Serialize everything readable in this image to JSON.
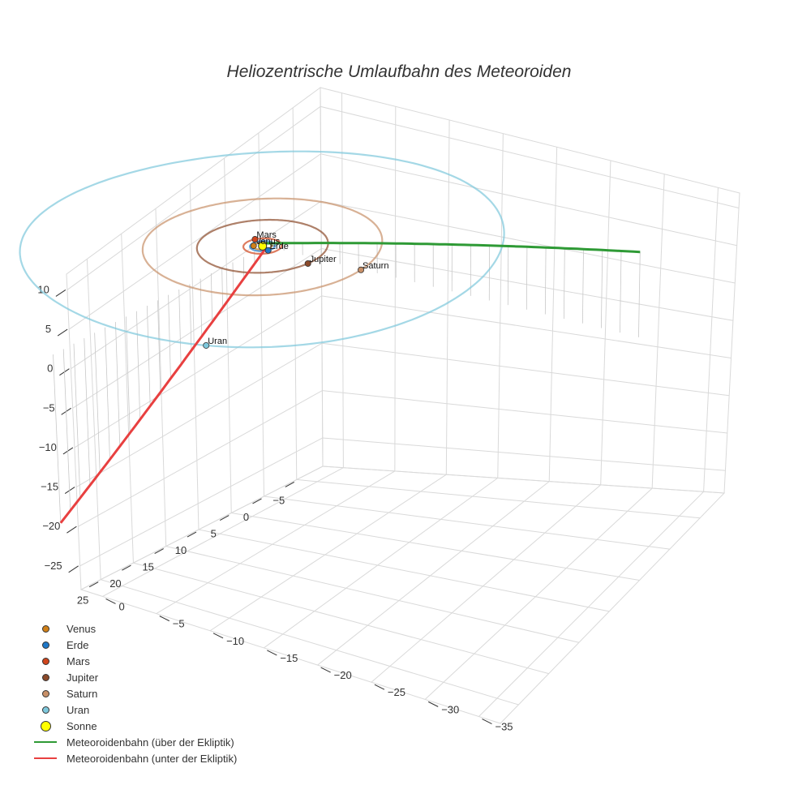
{
  "chart_data": {
    "type": "scatter3d",
    "title": "Heliozentrische Umlaufbahn des Meteoroiden",
    "axes": {
      "x": {
        "ticks": [
          -35,
          -30,
          -25,
          -20,
          -15,
          -10,
          -5,
          0
        ],
        "tick_labels": [
          "−35",
          "−30",
          "−25",
          "−20",
          "−15",
          "−10",
          "−5",
          "0"
        ]
      },
      "y": {
        "ticks": [
          -5,
          0,
          5,
          10,
          15,
          20,
          25
        ],
        "tick_labels": [
          "−5",
          "0",
          "5",
          "10",
          "15",
          "20",
          "25"
        ]
      },
      "z": {
        "ticks": [
          10,
          5,
          0,
          -5,
          -10,
          -15,
          -20,
          -25
        ],
        "tick_labels": [
          "10",
          "5",
          "0",
          "−5",
          "−10",
          "−15",
          "−20",
          "−25"
        ]
      },
      "grid": true
    },
    "bodies": [
      {
        "name": "Venus",
        "color": "#d08018",
        "orbit_radius": 0.72
      },
      {
        "name": "Erde",
        "color": "#1f78c8",
        "orbit_radius": 1.0
      },
      {
        "name": "Mars",
        "color": "#d0451c",
        "orbit_radius": 1.52
      },
      {
        "name": "Jupiter",
        "color": "#8b4a2a",
        "orbit_radius": 5.2
      },
      {
        "name": "Saturn",
        "color": "#c89068",
        "orbit_radius": 9.5
      },
      {
        "name": "Uran",
        "color": "#7ec8dc",
        "orbit_radius": 19.2
      }
    ],
    "sun": {
      "name": "Sonne",
      "color": "#ffff00"
    },
    "meteoroid": {
      "above_label": "Meteoroidenbahn (über der Ekliptik)",
      "below_label": "Meteoroidenbahn (unter der Ekliptik)",
      "above_color": "#2e9a35",
      "below_color": "#e84040"
    },
    "legend_position": "bottom-left"
  },
  "legend": {
    "items": [
      {
        "label": "Venus",
        "kind": "dot",
        "color": "#d08018"
      },
      {
        "label": "Erde",
        "kind": "dot",
        "color": "#1f78c8"
      },
      {
        "label": "Mars",
        "kind": "dot",
        "color": "#d0451c"
      },
      {
        "label": "Jupiter",
        "kind": "dot",
        "color": "#8b4a2a"
      },
      {
        "label": "Saturn",
        "kind": "dot",
        "color": "#c89068"
      },
      {
        "label": "Uran",
        "kind": "dot",
        "color": "#7ec8dc"
      },
      {
        "label": "Sonne",
        "kind": "bigdot",
        "color": "#ffff00"
      },
      {
        "label": "Meteoroidenbahn (über der Ekliptik)",
        "kind": "line",
        "color": "#2e9a35"
      },
      {
        "label": "Meteoroidenbahn (unter der Ekliptik)",
        "kind": "line",
        "color": "#e84040"
      }
    ]
  }
}
